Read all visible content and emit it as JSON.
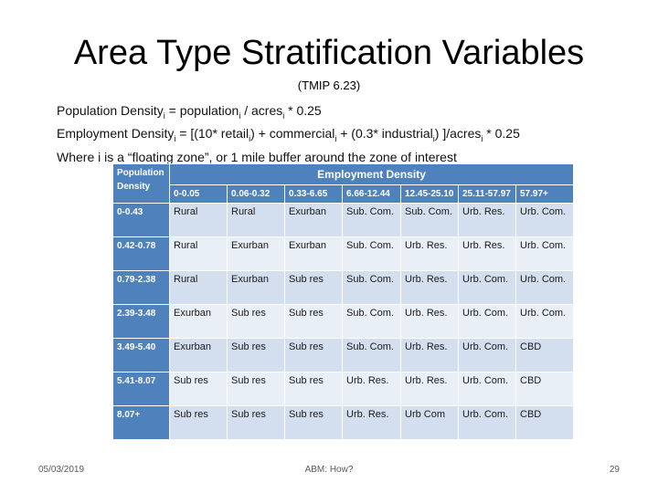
{
  "slide": {
    "title": "Area Type Stratification Variables",
    "subtitle": "(TMIP 6.23)",
    "formulas": {
      "line1": {
        "a": "Population Density",
        "a_sub": "i",
        "b": " = population",
        "b_sub": "i",
        "c": " / acres",
        "c_sub": "i",
        "d": " * 0.25"
      },
      "line2": {
        "a": "Employment Density",
        "a_sub": "i",
        "b": " = [(10* retail",
        "b_sub": "i",
        "c": ") + commercial",
        "c_sub": "i",
        "d": " + (0.3* industrial",
        "d_sub": "i",
        "e": ") ]/acres",
        "e_sub": "i",
        "f": " * 0.25"
      },
      "line3": "Where i is a “floating zone”, or 1 mile buffer around the zone of interest"
    },
    "table": {
      "corner_header": "Population Density",
      "group_header": "Employment Density",
      "emp_ranges": [
        "0-0.05",
        "0.06-0.32",
        "0.33-6.65",
        "6.66-12.44",
        "12.45-25.10",
        "25.11-57.97",
        "57.97+"
      ],
      "rows": [
        {
          "pop": "0-0.43",
          "cells": [
            "Rural",
            "Rural",
            "Exurban",
            "Sub. Com.",
            "Sub. Com.",
            "Urb. Res.",
            "Urb. Com."
          ]
        },
        {
          "pop": "0.42-0.78",
          "cells": [
            "Rural",
            "Exurban",
            "Exurban",
            "Sub. Com.",
            "Urb. Res.",
            "Urb. Res.",
            "Urb. Com."
          ]
        },
        {
          "pop": "0.79-2.38",
          "cells": [
            "Rural",
            "Exurban",
            "Sub res",
            "Sub. Com.",
            "Urb. Res.",
            "Urb. Com.",
            "Urb. Com."
          ]
        },
        {
          "pop": "2.39-3.48",
          "cells": [
            "Exurban",
            "Sub res",
            "Sub res",
            "Sub. Com.",
            "Urb. Res.",
            "Urb. Com.",
            "Urb. Com."
          ]
        },
        {
          "pop": "3.49-5.40",
          "cells": [
            "Exurban",
            "Sub res",
            "Sub res",
            "Sub. Com.",
            "Urb. Res.",
            "Urb. Com.",
            "CBD"
          ]
        },
        {
          "pop": "5.41-8.07",
          "cells": [
            "Sub res",
            "Sub res",
            "Sub res",
            "Urb. Res.",
            "Urb. Res.",
            "Urb. Com.",
            "CBD"
          ]
        },
        {
          "pop": "8.07+",
          "cells": [
            "Sub res",
            "Sub res",
            "Sub res",
            "Urb. Res.",
            "Urb Com",
            "Urb. Com.",
            "CBD"
          ]
        }
      ]
    },
    "footer": {
      "date": "05/03/2019",
      "center": "ABM: How?",
      "page": "29"
    }
  }
}
